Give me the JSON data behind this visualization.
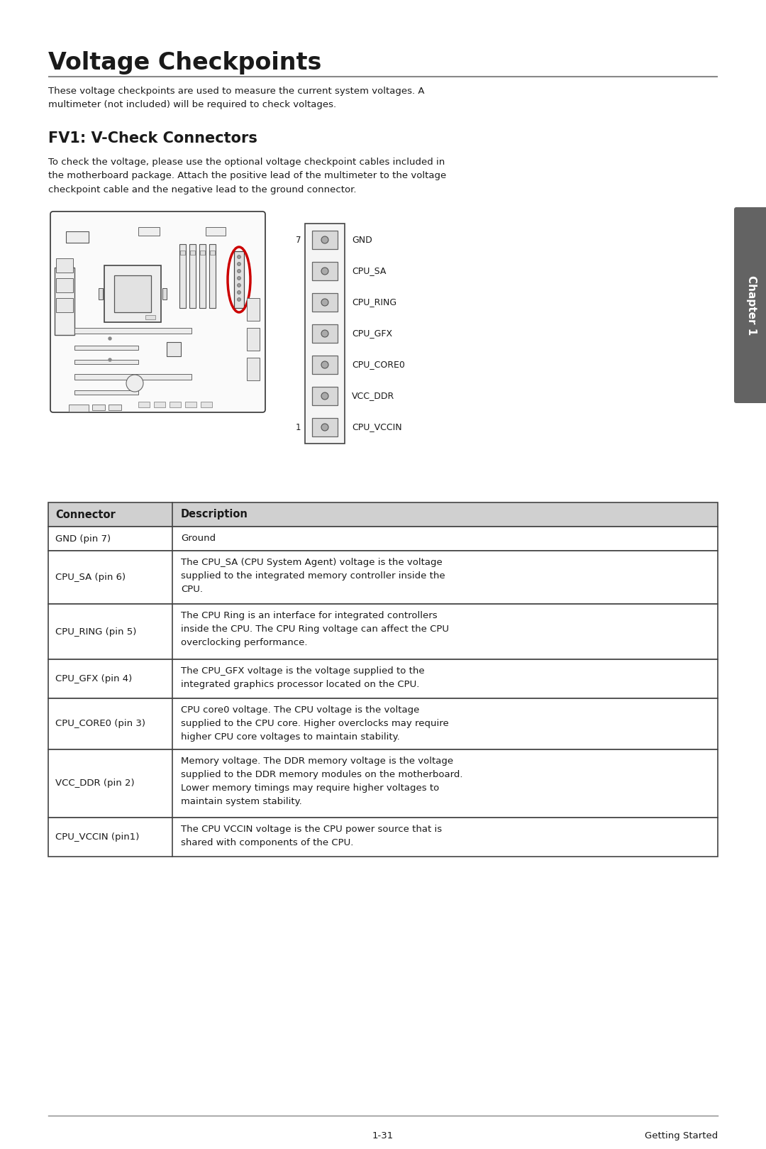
{
  "page_title": "Voltage Checkpoints",
  "page_title_fontsize": 24,
  "section_title": "FV1: V-Check Connectors",
  "section_title_fontsize": 15,
  "intro_text": "These voltage checkpoints are used to measure the current system voltages. A\nmultimeter (not included) will be required to check voltages.",
  "section_text": "To check the voltage, please use the optional voltage checkpoint cables included in\nthe motherboard package. Attach the positive lead of the multimeter to the voltage\ncheckpoint cable and the negative lead to the ground connector.",
  "body_fontsize": 9.5,
  "connector_labels": [
    "GND",
    "CPU_SA",
    "CPU_RING",
    "CPU_GFX",
    "CPU_CORE0",
    "VCC_DDR",
    "CPU_VCCIN"
  ],
  "pin_numbers": [
    "7",
    "",
    "",
    "",
    "",
    "",
    "1"
  ],
  "table_headers": [
    "Connector",
    "Description"
  ],
  "table_data": [
    [
      "GND (pin 7)",
      "Ground"
    ],
    [
      "CPU_SA (pin 6)",
      "The CPU_SA (CPU System Agent) voltage is the voltage\nsupplied to the integrated memory controller inside the\nCPU."
    ],
    [
      "CPU_RING (pin 5)",
      "The CPU Ring is an interface for integrated controllers\ninside the CPU. The CPU Ring voltage can affect the CPU\noverclocking performance."
    ],
    [
      "CPU_GFX (pin 4)",
      "The CPU_GFX voltage is the voltage supplied to the\nintegrated graphics processor located on the CPU."
    ],
    [
      "CPU_CORE0 (pin 3)",
      "CPU core0 voltage. The CPU voltage is the voltage\nsupplied to the CPU core. Higher overclocks may require\nhigher CPU core voltages to maintain stability."
    ],
    [
      "VCC_DDR (pin 2)",
      "Memory voltage. The DDR memory voltage is the voltage\nsupplied to the DDR memory modules on the motherboard.\nLower memory timings may require higher voltages to\nmaintain system stability."
    ],
    [
      "CPU_VCCIN (pin1)",
      "The CPU VCCIN voltage is the CPU power source that is\nshared with components of the CPU."
    ]
  ],
  "footer_left": "1-31",
  "footer_right": "Getting Started",
  "bg_color": "#ffffff",
  "text_color": "#1a1a1a",
  "table_border_color": "#444444",
  "tab_color": "#636363",
  "tab_text": "Chapter 1",
  "circle_highlight_color": "#cc0000"
}
